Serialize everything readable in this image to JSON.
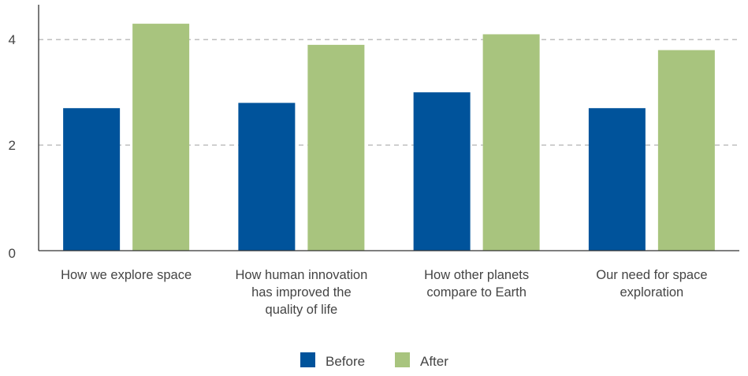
{
  "chart_data": {
    "type": "bar",
    "categories": [
      "How we explore space",
      "How human innovation has improved the quality of life",
      "How other planets compare to Earth",
      "Our need for space exploration"
    ],
    "series": [
      {
        "name": "Before",
        "color": "#00539b",
        "values": [
          2.7,
          2.8,
          3.0,
          2.7
        ]
      },
      {
        "name": "After",
        "color": "#a8c47e",
        "values": [
          4.3,
          3.9,
          4.1,
          3.8
        ]
      }
    ],
    "title": "",
    "xlabel": "",
    "ylabel": "",
    "ylim": [
      0,
      4.6
    ],
    "yticks": [
      0,
      2,
      4
    ],
    "grid": true,
    "legend_position": "bottom",
    "colors": {
      "axis": "#333333",
      "grid": "#aaaaaa",
      "text": "#444444"
    }
  }
}
